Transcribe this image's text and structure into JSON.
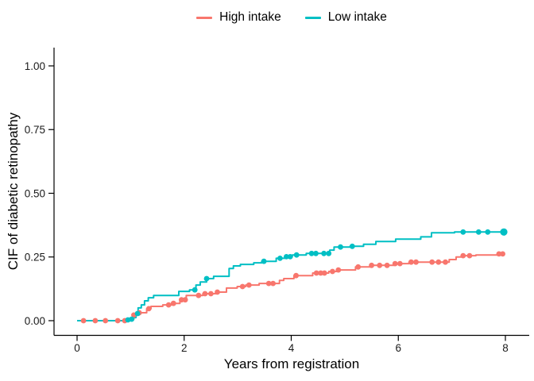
{
  "figure": {
    "background": "#FFFFFF",
    "axis_color": "#000000",
    "tick_label_color": "#1A1A1A"
  },
  "chart_data": {
    "type": "line",
    "line_style": "step-after",
    "title": "",
    "xlabel": "Years from registration",
    "ylabel": "CIF of diabetic retinopathy",
    "xlim": [
      0,
      8
    ],
    "ylim": [
      0,
      1
    ],
    "x_ticks": [
      0,
      2,
      4,
      6,
      8
    ],
    "y_ticks": [
      0,
      0.25,
      0.5,
      0.75,
      1
    ],
    "y_tick_labels": [
      "0.00",
      "0.25",
      "0.50",
      "0.75",
      "1.00"
    ],
    "grid": false,
    "legend_position": "top",
    "marker_meaning": "censoring marks",
    "series": [
      {
        "name": "High intake",
        "color": "#F8766D",
        "steps": [
          [
            0,
            0
          ],
          [
            1.0,
            0.006
          ],
          [
            1.06,
            0.022
          ],
          [
            1.16,
            0.031
          ],
          [
            1.3,
            0.047
          ],
          [
            1.38,
            0.056
          ],
          [
            1.6,
            0.062
          ],
          [
            1.78,
            0.068
          ],
          [
            1.92,
            0.082
          ],
          [
            2.04,
            0.099
          ],
          [
            2.35,
            0.106
          ],
          [
            2.6,
            0.112
          ],
          [
            2.79,
            0.128
          ],
          [
            2.99,
            0.134
          ],
          [
            3.15,
            0.14
          ],
          [
            3.4,
            0.146
          ],
          [
            3.78,
            0.158
          ],
          [
            3.86,
            0.165
          ],
          [
            4.05,
            0.177
          ],
          [
            4.4,
            0.187
          ],
          [
            4.7,
            0.193
          ],
          [
            4.85,
            0.199
          ],
          [
            5.2,
            0.211
          ],
          [
            5.48,
            0.217
          ],
          [
            5.92,
            0.224
          ],
          [
            6.2,
            0.23
          ],
          [
            6.95,
            0.24
          ],
          [
            7.08,
            0.25
          ],
          [
            7.18,
            0.255
          ],
          [
            7.45,
            0.258
          ],
          [
            7.85,
            0.262
          ],
          [
            7.98,
            0.262
          ]
        ],
        "censor_times": [
          0.12,
          0.34,
          0.53,
          0.76,
          0.89,
          1.06,
          1.16,
          1.34,
          1.71,
          1.8,
          1.95,
          2.02,
          2.27,
          2.39,
          2.5,
          2.62,
          3.09,
          3.21,
          3.58,
          3.66,
          4.09,
          4.47,
          4.55,
          4.62,
          4.77,
          4.88,
          5.25,
          5.5,
          5.65,
          5.79,
          5.94,
          6.03,
          6.24,
          6.33,
          6.63,
          6.75,
          6.88,
          7.21,
          7.33,
          7.88,
          7.95
        ]
      },
      {
        "name": "Low intake",
        "color": "#00BFC4",
        "steps": [
          [
            0,
            0
          ],
          [
            0.9,
            0.003
          ],
          [
            0.99,
            0.006
          ],
          [
            1.05,
            0.012
          ],
          [
            1.1,
            0.028
          ],
          [
            1.14,
            0.05
          ],
          [
            1.2,
            0.062
          ],
          [
            1.26,
            0.078
          ],
          [
            1.33,
            0.09
          ],
          [
            1.43,
            0.099
          ],
          [
            1.9,
            0.115
          ],
          [
            2.1,
            0.121
          ],
          [
            2.22,
            0.14
          ],
          [
            2.3,
            0.152
          ],
          [
            2.42,
            0.165
          ],
          [
            2.55,
            0.174
          ],
          [
            2.84,
            0.205
          ],
          [
            2.92,
            0.215
          ],
          [
            3.05,
            0.221
          ],
          [
            3.3,
            0.227
          ],
          [
            3.45,
            0.233
          ],
          [
            3.72,
            0.245
          ],
          [
            3.88,
            0.251
          ],
          [
            4.02,
            0.258
          ],
          [
            4.28,
            0.264
          ],
          [
            4.72,
            0.277
          ],
          [
            4.8,
            0.289
          ],
          [
            5.1,
            0.292
          ],
          [
            5.35,
            0.3
          ],
          [
            5.58,
            0.311
          ],
          [
            5.95,
            0.32
          ],
          [
            6.42,
            0.329
          ],
          [
            6.62,
            0.345
          ],
          [
            7.05,
            0.348
          ],
          [
            7.97,
            0.348
          ]
        ],
        "censor_times": [
          0.95,
          1.02,
          1.13,
          2.2,
          2.42,
          3.49,
          3.79,
          3.91,
          3.98,
          4.1,
          4.38,
          4.46,
          4.61,
          4.7,
          4.92,
          5.14,
          7.21,
          7.5,
          7.67
        ],
        "end_dot": {
          "x": 7.97,
          "r": 4.6
        }
      }
    ]
  }
}
